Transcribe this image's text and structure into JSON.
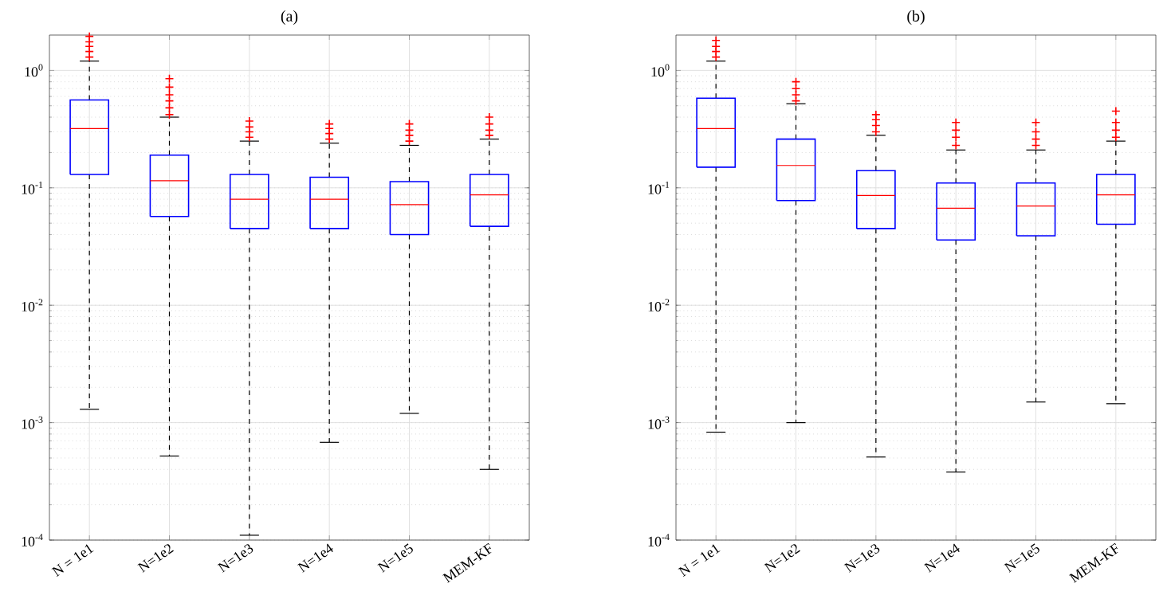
{
  "chart_data": [
    {
      "type": "box",
      "title": "(a)",
      "categories": [
        "N = 1e1",
        "N=1e2",
        "N=1e3",
        "N=1e4",
        "N=1e5",
        "MEM-KF"
      ],
      "log": "y",
      "grid": true,
      "marker": "cross",
      "ylim": [
        0.0001,
        2
      ],
      "yticks": [
        {
          "value": 0.0001,
          "label": "10$^{-4}$"
        },
        {
          "value": 0.001,
          "label": "10$^{-3}$"
        },
        {
          "value": 0.01,
          "label": "10$^{-2}$"
        },
        {
          "value": 0.1,
          "label": "10$^{-1}$"
        },
        {
          "value": 1,
          "label": "10$^{0}$"
        }
      ],
      "series": [
        {
          "color": "#0000ff",
          "boxes": [
            {
              "low": 0.0013,
              "q1": 0.13,
              "median": 0.32,
              "q3": 0.56,
              "high": 1.2,
              "outliers": [
                1.3,
                1.45,
                1.6,
                1.75,
                1.95
              ]
            },
            {
              "low": 0.00052,
              "q1": 0.057,
              "median": 0.115,
              "q3": 0.19,
              "high": 0.4,
              "outliers": [
                0.42,
                0.48,
                0.55,
                0.62,
                0.72,
                0.85
              ]
            },
            {
              "low": 0.00011,
              "q1": 0.045,
              "median": 0.08,
              "q3": 0.13,
              "high": 0.25,
              "outliers": [
                0.27,
                0.3,
                0.33,
                0.37
              ]
            },
            {
              "low": 0.00068,
              "q1": 0.045,
              "median": 0.08,
              "q3": 0.123,
              "high": 0.24,
              "outliers": [
                0.26,
                0.29,
                0.32,
                0.35
              ]
            },
            {
              "low": 0.0012,
              "q1": 0.04,
              "median": 0.072,
              "q3": 0.113,
              "high": 0.23,
              "outliers": [
                0.25,
                0.28,
                0.31,
                0.35
              ]
            },
            {
              "low": 0.0004,
              "q1": 0.047,
              "median": 0.087,
              "q3": 0.13,
              "high": 0.26,
              "outliers": [
                0.28,
                0.31,
                0.35,
                0.4
              ]
            }
          ]
        }
      ]
    },
    {
      "type": "box",
      "title": "(b)",
      "categories": [
        "N = 1e1",
        "N=1e2",
        "N=1e3",
        "N=1e4",
        "N=1e5",
        "MEM-KF"
      ],
      "log": "y",
      "grid": true,
      "marker": "cross",
      "ylim": [
        0.0001,
        2
      ],
      "yticks": [
        {
          "value": 0.0001,
          "label": "10$^{-4}$"
        },
        {
          "value": 0.001,
          "label": "10$^{-3}$"
        },
        {
          "value": 0.01,
          "label": "10$^{-2}$"
        },
        {
          "value": 0.1,
          "label": "10$^{-1}$"
        },
        {
          "value": 1,
          "label": "10$^{0}$"
        }
      ],
      "series": [
        {
          "color": "#0000ff",
          "boxes": [
            {
              "low": 0.00083,
              "q1": 0.15,
              "median": 0.32,
              "q3": 0.58,
              "high": 1.2,
              "outliers": [
                1.3,
                1.45,
                1.6,
                1.8
              ]
            },
            {
              "low": 0.001,
              "q1": 0.078,
              "median": 0.155,
              "q3": 0.26,
              "high": 0.52,
              "outliers": [
                0.55,
                0.62,
                0.7,
                0.8
              ]
            },
            {
              "low": 0.00051,
              "q1": 0.045,
              "median": 0.086,
              "q3": 0.14,
              "high": 0.28,
              "outliers": [
                0.3,
                0.34,
                0.38,
                0.42
              ]
            },
            {
              "low": 0.00038,
              "q1": 0.036,
              "median": 0.067,
              "q3": 0.11,
              "high": 0.21,
              "outliers": [
                0.23,
                0.27,
                0.31,
                0.36
              ]
            },
            {
              "low": 0.0015,
              "q1": 0.039,
              "median": 0.07,
              "q3": 0.11,
              "high": 0.21,
              "outliers": [
                0.23,
                0.26,
                0.3,
                0.36
              ]
            },
            {
              "low": 0.00145,
              "q1": 0.049,
              "median": 0.087,
              "q3": 0.13,
              "high": 0.25,
              "outliers": [
                0.27,
                0.31,
                0.36,
                0.45
              ]
            }
          ]
        }
      ]
    }
  ]
}
